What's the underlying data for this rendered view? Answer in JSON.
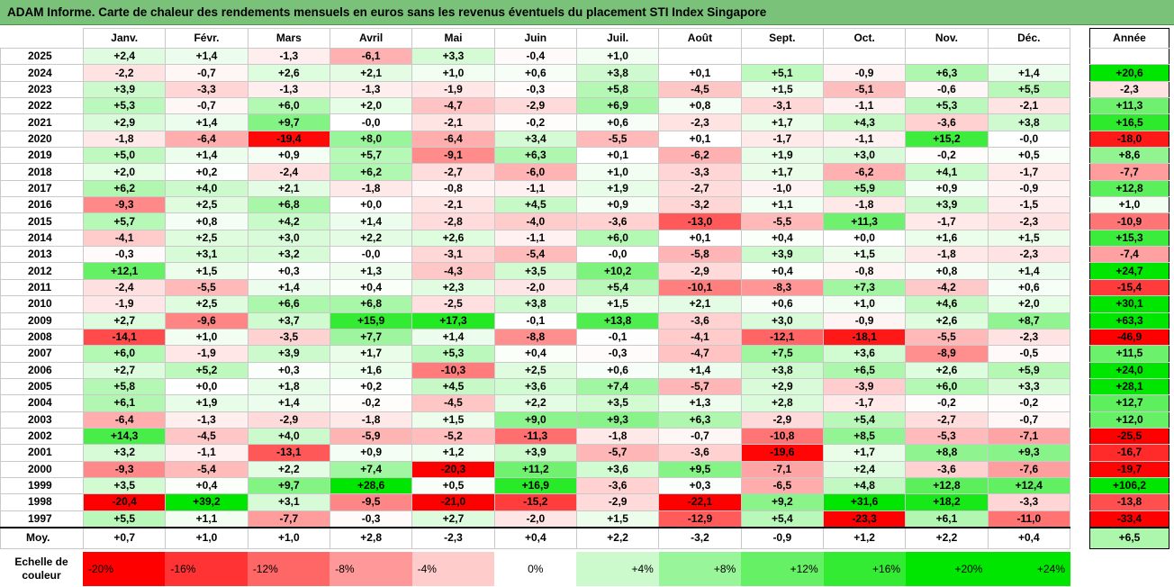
{
  "title": "ADAM Informe. Carte de chaleur des rendements mensuels en euros sans les revenus éventuels du placement STI Index Singapore",
  "colors": {
    "title_bg": "#7ac27a",
    "negative_max": "#ff0000",
    "positive_max": "#00e600",
    "neutral": "#ffffff"
  },
  "chart_data": {
    "type": "heatmap",
    "title": "ADAM Informe. Carte de chaleur des rendements mensuels en euros sans les revenus éventuels du placement STI Index Singapore",
    "months": [
      "Janv.",
      "Févr.",
      "Mars",
      "Avril",
      "Mai",
      "Juin",
      "Juil.",
      "Août",
      "Sept.",
      "Oct.",
      "Nov.",
      "Déc."
    ],
    "annual_header": "Année",
    "rows": [
      {
        "year": "2025",
        "values": [
          "+2,4",
          "+1,4",
          "-1,3",
          "-6,1",
          "+3,3",
          "-0,4",
          "+1,0",
          "",
          "",
          "",
          "",
          ""
        ],
        "annual": ""
      },
      {
        "year": "2024",
        "values": [
          "-2,2",
          "-0,7",
          "+2,6",
          "+2,1",
          "+1,0",
          "+0,6",
          "+3,8",
          "+0,1",
          "+5,1",
          "-0,9",
          "+6,3",
          "+1,4"
        ],
        "annual": "+20,6"
      },
      {
        "year": "2023",
        "values": [
          "+3,9",
          "-3,3",
          "-1,3",
          "-1,3",
          "-1,9",
          "-0,3",
          "+5,8",
          "-4,5",
          "+1,5",
          "-5,1",
          "-0,6",
          "+5,5"
        ],
        "annual": "-2,3"
      },
      {
        "year": "2022",
        "values": [
          "+5,3",
          "-0,7",
          "+6,0",
          "+2,0",
          "-4,7",
          "-2,9",
          "+6,9",
          "+0,8",
          "-3,1",
          "-1,1",
          "+5,3",
          "-2,1"
        ],
        "annual": "+11,3"
      },
      {
        "year": "2021",
        "values": [
          "+2,9",
          "+1,4",
          "+9,7",
          "-0,0",
          "-2,1",
          "-0,2",
          "+0,6",
          "-2,3",
          "+1,7",
          "+4,3",
          "-3,6",
          "+3,8"
        ],
        "annual": "+16,5"
      },
      {
        "year": "2020",
        "values": [
          "-1,8",
          "-6,4",
          "-19,4",
          "+8,0",
          "-6,4",
          "+3,4",
          "-5,5",
          "+0,1",
          "-1,7",
          "-1,1",
          "+15,2",
          "-0,0"
        ],
        "annual": "-18,0"
      },
      {
        "year": "2019",
        "values": [
          "+5,0",
          "+1,4",
          "+0,9",
          "+5,7",
          "-9,1",
          "+6,3",
          "+0,1",
          "-6,2",
          "+1,9",
          "+3,0",
          "-0,2",
          "+0,5"
        ],
        "annual": "+8,6"
      },
      {
        "year": "2018",
        "values": [
          "+2,0",
          "+0,2",
          "-2,4",
          "+6,2",
          "-2,7",
          "-6,0",
          "+1,0",
          "-3,3",
          "+1,7",
          "-6,2",
          "+4,1",
          "-1,7"
        ],
        "annual": "-7,7"
      },
      {
        "year": "2017",
        "values": [
          "+6,2",
          "+4,0",
          "+2,1",
          "-1,8",
          "-0,8",
          "-1,1",
          "+1,9",
          "-2,7",
          "-1,0",
          "+5,9",
          "+0,9",
          "-0,9"
        ],
        "annual": "+12,8"
      },
      {
        "year": "2016",
        "values": [
          "-9,3",
          "+2,5",
          "+6,8",
          "+0,0",
          "-2,1",
          "+4,5",
          "+0,9",
          "-3,2",
          "+1,1",
          "-1,8",
          "+3,9",
          "-1,5"
        ],
        "annual": "+1,0"
      },
      {
        "year": "2015",
        "values": [
          "+5,7",
          "+0,8",
          "+4,2",
          "+1,4",
          "-2,8",
          "-4,0",
          "-3,6",
          "-13,0",
          "-5,5",
          "+11,3",
          "-1,7",
          "-2,3"
        ],
        "annual": "-10,9"
      },
      {
        "year": "2014",
        "values": [
          "-4,1",
          "+2,5",
          "+3,0",
          "+2,2",
          "+2,6",
          "-1,1",
          "+6,0",
          "+0,1",
          "+0,4",
          "+0,0",
          "+1,6",
          "+1,5"
        ],
        "annual": "+15,3"
      },
      {
        "year": "2013",
        "values": [
          "-0,3",
          "+3,1",
          "+3,2",
          "-0,0",
          "-3,1",
          "-5,4",
          "-0,0",
          "-5,8",
          "+3,9",
          "+1,5",
          "-1,8",
          "-2,3"
        ],
        "annual": "-7,4"
      },
      {
        "year": "2012",
        "values": [
          "+12,1",
          "+1,5",
          "+0,3",
          "+1,3",
          "-4,3",
          "+3,5",
          "+10,2",
          "-2,9",
          "+0,4",
          "-0,8",
          "+0,8",
          "+1,4"
        ],
        "annual": "+24,7"
      },
      {
        "year": "2011",
        "values": [
          "-2,4",
          "-5,5",
          "+1,4",
          "+0,4",
          "+2,3",
          "-2,0",
          "+5,4",
          "-10,1",
          "-8,3",
          "+7,3",
          "-4,2",
          "+0,6"
        ],
        "annual": "-15,4"
      },
      {
        "year": "2010",
        "values": [
          "-1,9",
          "+2,5",
          "+6,6",
          "+6,8",
          "-2,5",
          "+3,8",
          "+1,5",
          "+2,1",
          "+0,6",
          "+1,0",
          "+4,6",
          "+2,0"
        ],
        "annual": "+30,1"
      },
      {
        "year": "2009",
        "values": [
          "+2,7",
          "-9,6",
          "+3,7",
          "+15,9",
          "+17,3",
          "-0,1",
          "+13,8",
          "-3,6",
          "+3,0",
          "-0,9",
          "+2,6",
          "+8,7"
        ],
        "annual": "+63,3"
      },
      {
        "year": "2008",
        "values": [
          "-14,1",
          "+1,0",
          "-3,5",
          "+7,7",
          "+1,4",
          "-8,8",
          "-0,1",
          "-4,1",
          "-12,1",
          "-18,1",
          "-5,5",
          "-2,3"
        ],
        "annual": "-46,9"
      },
      {
        "year": "2007",
        "values": [
          "+6,0",
          "-1,9",
          "+3,9",
          "+1,7",
          "+5,3",
          "+0,4",
          "-0,3",
          "-4,7",
          "+7,5",
          "+3,6",
          "-8,9",
          "-0,5"
        ],
        "annual": "+11,5"
      },
      {
        "year": "2006",
        "values": [
          "+2,7",
          "+5,2",
          "+0,3",
          "+1,6",
          "-10,3",
          "+2,5",
          "+0,6",
          "+1,4",
          "+3,8",
          "+6,5",
          "+2,6",
          "+5,9"
        ],
        "annual": "+24,0"
      },
      {
        "year": "2005",
        "values": [
          "+5,8",
          "+0,0",
          "+1,8",
          "+0,2",
          "+4,5",
          "+3,6",
          "+7,4",
          "-5,7",
          "+2,9",
          "-3,9",
          "+6,0",
          "+3,3"
        ],
        "annual": "+28,1"
      },
      {
        "year": "2004",
        "values": [
          "+6,1",
          "+1,9",
          "+1,4",
          "-0,2",
          "-4,5",
          "+2,2",
          "+3,5",
          "+1,3",
          "+2,8",
          "-1,7",
          "-0,2",
          "-0,2"
        ],
        "annual": "+12,7"
      },
      {
        "year": "2003",
        "values": [
          "-6,4",
          "-1,3",
          "-2,9",
          "-1,8",
          "+1,5",
          "+9,0",
          "+9,3",
          "+6,3",
          "-2,9",
          "+5,4",
          "-2,7",
          "-0,7"
        ],
        "annual": "+12,0"
      },
      {
        "year": "2002",
        "values": [
          "+14,3",
          "-4,5",
          "+4,0",
          "-5,9",
          "-5,2",
          "-11,3",
          "-1,8",
          "-0,7",
          "-10,8",
          "+8,5",
          "-5,3",
          "-7,1"
        ],
        "annual": "-25,5"
      },
      {
        "year": "2001",
        "values": [
          "+3,2",
          "-1,1",
          "-13,1",
          "+0,9",
          "+1,2",
          "+3,9",
          "-5,7",
          "-3,6",
          "-19,6",
          "+1,7",
          "+8,8",
          "+9,3"
        ],
        "annual": "-16,7"
      },
      {
        "year": "2000",
        "values": [
          "-9,3",
          "-5,4",
          "+2,2",
          "+7,4",
          "-20,3",
          "+11,2",
          "+3,6",
          "+9,5",
          "-7,1",
          "+2,4",
          "-3,6",
          "-7,6"
        ],
        "annual": "-19,7"
      },
      {
        "year": "1999",
        "values": [
          "+3,5",
          "+0,4",
          "+9,7",
          "+28,6",
          "+0,5",
          "+16,9",
          "-3,6",
          "+0,3",
          "-6,5",
          "+4,8",
          "+12,8",
          "+12,4"
        ],
        "annual": "+106,2"
      },
      {
        "year": "1998",
        "values": [
          "-20,4",
          "+39,2",
          "+3,1",
          "-9,5",
          "-21,0",
          "-15,2",
          "-2,9",
          "-22,1",
          "+9,2",
          "+31,6",
          "+18,2",
          "-3,3"
        ],
        "annual": "-13,8"
      },
      {
        "year": "1997",
        "values": [
          "+5,5",
          "+1,1",
          "-7,7",
          "-0,3",
          "+2,7",
          "-2,0",
          "+1,5",
          "-12,9",
          "+5,4",
          "-23,3",
          "+6,1",
          "-11,0"
        ],
        "annual": "-33,4"
      }
    ],
    "average": {
      "label": "Moy.",
      "values": [
        "+0,7",
        "+1,0",
        "+1,0",
        "+2,8",
        "-2,3",
        "+0,4",
        "+2,2",
        "-3,2",
        "-0,9",
        "+1,2",
        "+2,2",
        "+0,4"
      ],
      "annual": "+6,5"
    },
    "scale": {
      "label": "Echelle de couleur",
      "steps": [
        {
          "text": "-20%",
          "value": -20
        },
        {
          "text": "-16%",
          "value": -16
        },
        {
          "text": "-12%",
          "value": -12
        },
        {
          "text": "-8%",
          "value": -8
        },
        {
          "text": "-4%",
          "value": -4
        },
        {
          "text": "0%",
          "value": 0
        },
        {
          "text": "+4%",
          "value": 4
        },
        {
          "text": "+8%",
          "value": 8
        },
        {
          "text": "+12%",
          "value": 12
        },
        {
          "text": "+16%",
          "value": 16
        },
        {
          "text": "+20%",
          "value": 20
        },
        {
          "text": "+24%",
          "value": 24
        }
      ]
    }
  }
}
